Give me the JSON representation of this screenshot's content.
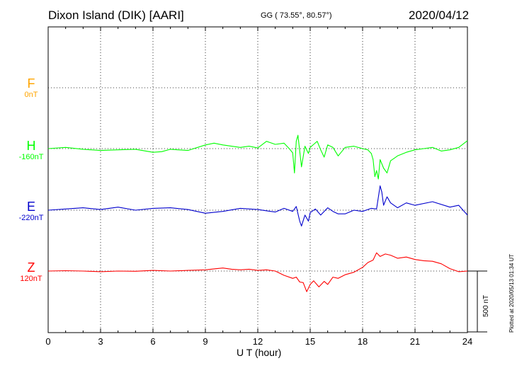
{
  "header": {
    "station": "Dixon Island (DIK)  [AARI]",
    "coords": "GG ( 73.55°,  80.57°)",
    "date": "2020/04/12"
  },
  "footer": {
    "plotted": "Plotted at 2020/05/13 01:34  UT",
    "scale": "500 nT"
  },
  "components": [
    {
      "name": "F",
      "baseline": "0nT",
      "color": "#ffa500"
    },
    {
      "name": "H",
      "baseline": "-160nT",
      "color": "#00ff00"
    },
    {
      "name": "E",
      "baseline": "-220nT",
      "color": "#0000cd"
    },
    {
      "name": "Z",
      "baseline": "120nT",
      "color": "#ff0000"
    }
  ],
  "chart_data": {
    "type": "line",
    "xlabel": "U T (hour)",
    "xlim": [
      0,
      24
    ],
    "xticks": [
      "0",
      "3",
      "6",
      "9",
      "12",
      "15",
      "18",
      "21",
      "24"
    ],
    "scale_nT": 500,
    "grid": true,
    "series": [
      {
        "name": "H",
        "color": "#00ff00",
        "baseline_nT": -160,
        "x": [
          0,
          1,
          2,
          3,
          4,
          5,
          6,
          6.5,
          7,
          8,
          9,
          9.5,
          10,
          10.5,
          11,
          11.5,
          12,
          12.5,
          13,
          13.5,
          13.8,
          14,
          14.1,
          14.2,
          14.3,
          14.4,
          14.5,
          14.7,
          14.9,
          15,
          15.2,
          15.4,
          15.6,
          15.8,
          16,
          16.3,
          16.6,
          17,
          17.5,
          18,
          18.3,
          18.5,
          18.6,
          18.7,
          18.8,
          18.9,
          19,
          19.2,
          19.4,
          19.6,
          19.8,
          20,
          20.5,
          21,
          21.5,
          22,
          22.5,
          23,
          23.5,
          24
        ],
        "values": [
          0,
          10,
          -5,
          -15,
          -10,
          -5,
          -30,
          -25,
          -5,
          -15,
          30,
          45,
          30,
          20,
          10,
          20,
          5,
          60,
          35,
          45,
          0,
          -35,
          -200,
          60,
          110,
          -20,
          -150,
          20,
          -40,
          10,
          35,
          60,
          -10,
          -70,
          30,
          10,
          -60,
          10,
          20,
          0,
          -10,
          -40,
          -90,
          -230,
          -180,
          -250,
          -90,
          -160,
          -200,
          -100,
          -80,
          -60,
          -30,
          -10,
          0,
          10,
          -20,
          -10,
          10,
          65
        ]
      },
      {
        "name": "E",
        "color": "#0000cd",
        "baseline_nT": -220,
        "x": [
          0,
          1,
          2,
          3,
          4,
          5,
          6,
          7,
          8,
          9,
          10,
          11,
          12,
          13,
          13.5,
          14,
          14.2,
          14.4,
          14.5,
          14.7,
          14.9,
          15,
          15.3,
          15.6,
          16,
          16.3,
          16.6,
          17,
          17.5,
          18,
          18.5,
          18.8,
          19,
          19.1,
          19.2,
          19.4,
          19.6,
          20,
          20.5,
          21,
          22,
          23,
          23.5,
          24
        ],
        "values": [
          0,
          10,
          20,
          5,
          25,
          0,
          15,
          20,
          5,
          -25,
          -10,
          15,
          5,
          -15,
          15,
          -10,
          30,
          -90,
          -130,
          -40,
          -90,
          -20,
          10,
          -40,
          20,
          -10,
          -30,
          -30,
          0,
          -10,
          15,
          10,
          200,
          150,
          40,
          110,
          60,
          20,
          60,
          40,
          70,
          25,
          40,
          -40
        ]
      },
      {
        "name": "Z",
        "color": "#ff0000",
        "baseline_nT": 120,
        "x": [
          0,
          1,
          2,
          3,
          4,
          5,
          6,
          7,
          8,
          9,
          9.5,
          10,
          10.5,
          11,
          11.5,
          12,
          12.5,
          13,
          13.5,
          14,
          14.2,
          14.4,
          14.6,
          14.8,
          15,
          15.2,
          15.5,
          15.8,
          16,
          16.3,
          16.6,
          17,
          17.5,
          18,
          18.3,
          18.6,
          18.8,
          19,
          19.3,
          19.6,
          20,
          20.5,
          21,
          21.5,
          22,
          22.5,
          23,
          23.5,
          24
        ],
        "values": [
          0,
          3,
          0,
          -5,
          0,
          -2,
          5,
          0,
          5,
          10,
          18,
          25,
          15,
          10,
          15,
          5,
          10,
          0,
          -35,
          -60,
          -50,
          -90,
          -95,
          -170,
          -110,
          -80,
          -130,
          -85,
          -110,
          -50,
          -60,
          -30,
          -10,
          30,
          70,
          90,
          150,
          120,
          140,
          130,
          105,
          115,
          95,
          85,
          80,
          60,
          20,
          -5,
          0
        ]
      },
      {
        "name": "F",
        "color": "#ffa500",
        "baseline_nT": 0,
        "x": [],
        "values": []
      }
    ]
  }
}
